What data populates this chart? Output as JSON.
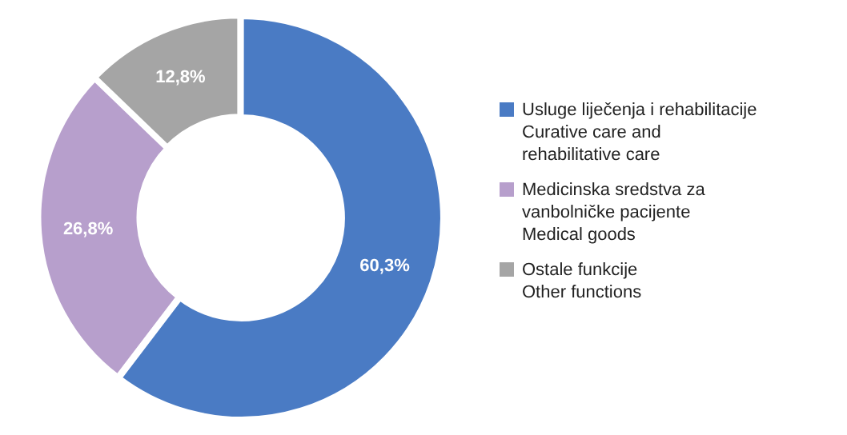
{
  "chart_data": {
    "type": "donut",
    "categories": [
      "Usluge liječenja i rehabilitacije\nCurative care and\nrehabilitative care",
      "Medicinska sredstva za\nvanbolničke pacijente\nMedical goods",
      "Ostale funkcije\nOther functions"
    ],
    "values": [
      60.3,
      26.8,
      12.8
    ],
    "colors": [
      "#4a7bc4",
      "#b79fcc",
      "#a5a5a5"
    ],
    "value_labels": [
      "60,3%",
      "26,8%",
      "12,8%"
    ],
    "legend": "right"
  }
}
